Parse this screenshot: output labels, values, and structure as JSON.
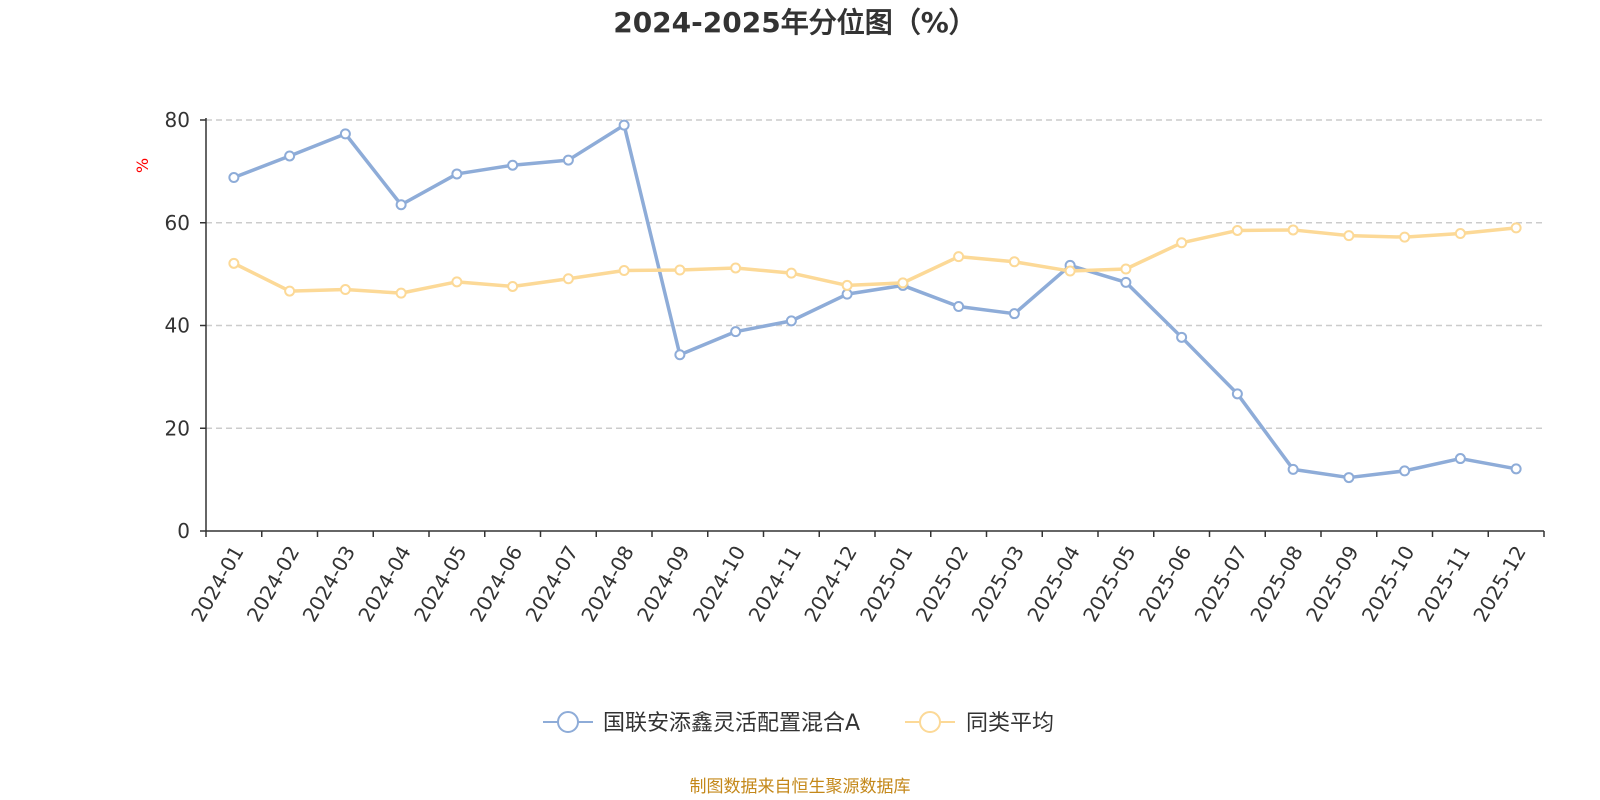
{
  "chart_data": {
    "type": "line",
    "title": "2024-2025年分位图（%）",
    "ylabel": "%",
    "ylim": [
      0,
      80
    ],
    "yticks": [
      0,
      20,
      40,
      60,
      80
    ],
    "grid": true,
    "legend_position": "bottom-center",
    "categories": [
      "2024-01",
      "2024-02",
      "2024-03",
      "2024-04",
      "2024-05",
      "2024-06",
      "2024-07",
      "2024-08",
      "2024-09",
      "2024-10",
      "2024-11",
      "2024-12",
      "2025-01",
      "2025-02",
      "2025-03",
      "2025-04",
      "2025-05",
      "2025-06",
      "2025-07",
      "2025-08",
      "2025-09",
      "2025-10",
      "2025-11",
      "2025-12"
    ],
    "series": [
      {
        "name": "国联安添鑫灵活配置混合A",
        "color": "#8eacd8",
        "values": [
          68.8,
          73.0,
          77.3,
          63.5,
          69.5,
          71.2,
          72.2,
          79.0,
          34.3,
          38.8,
          40.9,
          46.1,
          47.8,
          43.7,
          42.3,
          51.7,
          48.4,
          37.7,
          26.7,
          12.0,
          10.4,
          11.7,
          14.1,
          12.1
        ]
      },
      {
        "name": "同类平均",
        "color": "#fcd997",
        "values": [
          52.1,
          46.7,
          47.0,
          46.3,
          48.5,
          47.6,
          49.1,
          50.7,
          50.8,
          51.2,
          50.2,
          47.8,
          48.3,
          53.4,
          52.4,
          50.6,
          51.0,
          56.1,
          58.5,
          58.6,
          57.5,
          57.2,
          57.9,
          59.0
        ]
      }
    ],
    "source_note": "制图数据来自恒生聚源数据库",
    "colors": {
      "axis": "#333333",
      "grid": "#cccccc",
      "ylabel": "#ff0000",
      "source": "#c4881a",
      "title": "#333333"
    }
  }
}
